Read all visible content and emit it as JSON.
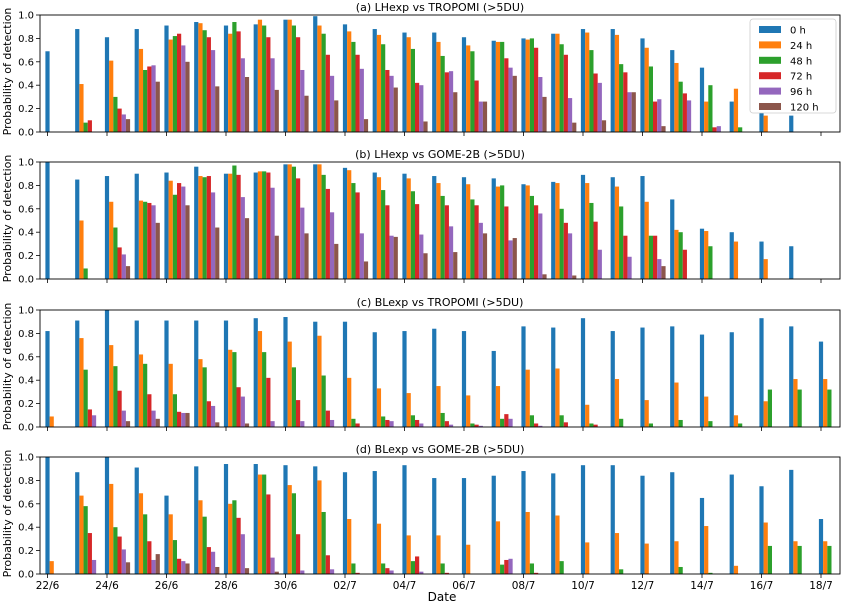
{
  "figure": {
    "xlabel": "Date",
    "ylabel": "Probability of detection",
    "x_tick_labels": [
      "22/6",
      "24/6",
      "26/6",
      "28/6",
      "30/6",
      "02/7",
      "04/7",
      "06/7",
      "08/7",
      "10/7",
      "12/7",
      "14/7",
      "16/7",
      "18/7"
    ],
    "y_tick_labels": [
      "0.0",
      "0.2",
      "0.4",
      "0.6",
      "0.8",
      "1.0"
    ],
    "legend": {
      "placement": "top-right of panel (a)",
      "entries": [
        "0 h",
        "24 h",
        "48 h",
        "72 h",
        "96 h",
        "120 h"
      ]
    },
    "colors": [
      "#1f77b4",
      "#ff7f0e",
      "#2ca02c",
      "#d62728",
      "#9467bd",
      "#8c564b"
    ]
  },
  "chart_data": [
    {
      "type": "bar",
      "title": "(a) LHexp vs TROPOMI (>5DU)",
      "ylabel": "Probability of detection",
      "ylim": [
        0,
        1
      ],
      "categories": [
        "22/6",
        "23/6",
        "24/6",
        "25/6",
        "26/6",
        "27/6",
        "28/6",
        "29/6",
        "30/6",
        "01/7",
        "02/7",
        "03/7",
        "04/7",
        "05/7",
        "06/7",
        "07/7",
        "08/7",
        "09/7",
        "10/7",
        "11/7",
        "12/7",
        "13/7",
        "14/7",
        "15/7",
        "16/7",
        "17/7",
        "18/7"
      ],
      "series": [
        {
          "name": "0 h",
          "values": [
            0.69,
            0.88,
            0.81,
            0.88,
            0.91,
            0.94,
            0.91,
            0.92,
            0.96,
            0.99,
            0.92,
            0.88,
            0.85,
            0.85,
            0.81,
            0.78,
            0.8,
            0.84,
            0.88,
            0.88,
            0.8,
            0.7,
            0.55,
            0.26,
            0.4,
            0.14,
            null
          ]
        },
        {
          "name": "24 h",
          "values": [
            null,
            0.41,
            0.61,
            0.71,
            0.79,
            0.93,
            0.84,
            0.96,
            0.96,
            0.91,
            0.86,
            0.83,
            0.81,
            0.77,
            0.74,
            0.77,
            0.79,
            0.84,
            0.85,
            0.83,
            0.72,
            0.59,
            0.26,
            0.37,
            0.14,
            null,
            null
          ]
        },
        {
          "name": "48 h",
          "values": [
            null,
            0.08,
            0.3,
            0.53,
            0.82,
            0.87,
            0.94,
            0.91,
            0.91,
            0.84,
            0.77,
            0.75,
            0.71,
            0.65,
            0.69,
            0.77,
            0.8,
            0.75,
            0.7,
            0.58,
            0.56,
            0.43,
            0.4,
            0.04,
            null,
            null,
            null
          ]
        },
        {
          "name": "72 h",
          "values": [
            null,
            0.1,
            0.2,
            0.56,
            0.84,
            0.81,
            0.86,
            0.81,
            0.81,
            0.66,
            0.66,
            0.53,
            0.42,
            0.51,
            0.44,
            0.63,
            0.72,
            0.66,
            0.5,
            0.51,
            0.26,
            0.33,
            0.04,
            null,
            null,
            null,
            null
          ]
        },
        {
          "name": "96 h",
          "values": [
            null,
            null,
            0.15,
            0.57,
            0.74,
            0.7,
            0.63,
            0.63,
            0.53,
            0.48,
            0.54,
            0.48,
            0.4,
            0.52,
            0.26,
            0.55,
            0.47,
            0.29,
            0.42,
            0.34,
            0.28,
            0.27,
            0.05,
            null,
            null,
            null,
            null
          ]
        },
        {
          "name": "120 h",
          "values": [
            null,
            null,
            0.11,
            0.43,
            0.6,
            0.39,
            0.47,
            0.36,
            0.31,
            0.27,
            0.11,
            0.38,
            0.09,
            0.34,
            0.26,
            0.48,
            0.3,
            0.08,
            0.1,
            0.34,
            0.05,
            null,
            null,
            null,
            null,
            null,
            null
          ]
        }
      ]
    },
    {
      "type": "bar",
      "title": "(b) LHexp vs GOME-2B (>5DU)",
      "ylabel": "Probability of detection",
      "ylim": [
        0,
        1
      ],
      "categories": [
        "22/6",
        "23/6",
        "24/6",
        "25/6",
        "26/6",
        "27/6",
        "28/6",
        "29/6",
        "30/6",
        "01/7",
        "02/7",
        "03/7",
        "04/7",
        "05/7",
        "06/7",
        "07/7",
        "08/7",
        "09/7",
        "10/7",
        "11/7",
        "12/7",
        "13/7",
        "14/7",
        "15/7",
        "16/7",
        "17/7",
        "18/7"
      ],
      "series": [
        {
          "name": "0 h",
          "values": [
            1.0,
            0.85,
            0.88,
            0.9,
            0.91,
            0.96,
            0.9,
            0.91,
            0.98,
            0.98,
            0.95,
            0.91,
            0.9,
            0.88,
            0.87,
            0.86,
            0.81,
            0.83,
            0.89,
            0.87,
            0.88,
            0.68,
            0.43,
            0.4,
            0.32,
            0.28,
            null
          ]
        },
        {
          "name": "24 h",
          "values": [
            null,
            0.5,
            0.66,
            0.67,
            0.84,
            0.88,
            0.9,
            0.92,
            0.98,
            0.98,
            0.93,
            0.87,
            0.86,
            0.82,
            0.81,
            0.79,
            0.8,
            0.82,
            0.82,
            0.79,
            0.66,
            0.42,
            0.41,
            0.32,
            0.17,
            null,
            null
          ]
        },
        {
          "name": "48 h",
          "values": [
            null,
            0.09,
            0.44,
            0.66,
            0.72,
            0.87,
            0.97,
            0.92,
            0.96,
            0.89,
            0.82,
            0.76,
            0.75,
            0.71,
            0.68,
            0.8,
            0.71,
            0.6,
            0.65,
            0.62,
            0.37,
            0.4,
            0.28,
            null,
            null,
            null,
            null
          ]
        },
        {
          "name": "72 h",
          "values": [
            null,
            null,
            0.27,
            0.65,
            0.82,
            0.88,
            0.89,
            0.91,
            0.86,
            0.77,
            0.74,
            0.63,
            0.64,
            0.63,
            0.63,
            0.62,
            0.63,
            0.48,
            0.49,
            0.37,
            0.37,
            0.25,
            null,
            null,
            null,
            null,
            null
          ]
        },
        {
          "name": "96 h",
          "values": [
            null,
            null,
            0.21,
            0.63,
            0.79,
            0.74,
            0.7,
            0.78,
            0.61,
            0.57,
            0.39,
            0.37,
            0.38,
            0.45,
            0.48,
            0.33,
            0.56,
            0.39,
            0.25,
            0.19,
            0.17,
            null,
            null,
            null,
            null,
            null,
            null
          ]
        },
        {
          "name": "120 h",
          "values": [
            null,
            null,
            0.11,
            0.48,
            0.63,
            0.44,
            0.52,
            0.37,
            0.39,
            0.3,
            0.15,
            0.36,
            0.22,
            0.23,
            0.39,
            0.35,
            0.04,
            0.03,
            null,
            null,
            0.11,
            null,
            null,
            null,
            null,
            null,
            null
          ]
        }
      ]
    },
    {
      "type": "bar",
      "title": "(c) BLexp vs TROPOMI (>5DU)",
      "ylabel": "Probability of detection",
      "ylim": [
        0,
        1
      ],
      "categories": [
        "22/6",
        "23/6",
        "24/6",
        "25/6",
        "26/6",
        "27/6",
        "28/6",
        "29/6",
        "30/6",
        "01/7",
        "02/7",
        "03/7",
        "04/7",
        "05/7",
        "06/7",
        "07/7",
        "08/7",
        "09/7",
        "10/7",
        "11/7",
        "12/7",
        "13/7",
        "14/7",
        "15/7",
        "16/7",
        "17/7",
        "18/7"
      ],
      "series": [
        {
          "name": "0 h",
          "values": [
            0.82,
            0.91,
            1.0,
            0.91,
            0.91,
            0.91,
            0.91,
            0.93,
            0.94,
            0.9,
            0.9,
            0.81,
            0.82,
            0.84,
            0.82,
            0.65,
            0.86,
            0.85,
            0.93,
            0.82,
            0.85,
            0.86,
            0.79,
            0.81,
            0.93,
            0.86,
            0.73
          ]
        },
        {
          "name": "24 h",
          "values": [
            0.09,
            0.76,
            0.7,
            0.62,
            0.54,
            0.58,
            0.66,
            0.82,
            0.73,
            0.78,
            0.42,
            0.33,
            0.29,
            0.35,
            0.27,
            0.35,
            0.49,
            0.5,
            0.19,
            0.41,
            0.23,
            0.38,
            0.26,
            0.1,
            0.22,
            0.41,
            0.41
          ]
        },
        {
          "name": "48 h",
          "values": [
            null,
            0.49,
            0.52,
            0.54,
            0.28,
            0.51,
            0.64,
            0.64,
            0.51,
            0.44,
            0.07,
            0.09,
            0.1,
            0.12,
            0.03,
            0.07,
            0.1,
            0.1,
            0.03,
            0.07,
            0.03,
            0.06,
            0.05,
            0.03,
            0.32,
            0.32,
            0.32
          ]
        },
        {
          "name": "72 h",
          "values": [
            null,
            0.15,
            0.31,
            0.28,
            0.13,
            0.22,
            0.34,
            0.42,
            0.23,
            0.14,
            0.03,
            0.06,
            0.06,
            0.05,
            0.02,
            0.11,
            0.03,
            0.04,
            0.02,
            null,
            null,
            null,
            null,
            null,
            null,
            null,
            null
          ]
        },
        {
          "name": "96 h",
          "values": [
            null,
            0.1,
            0.14,
            0.14,
            0.12,
            0.18,
            0.26,
            0.05,
            0.05,
            0.06,
            null,
            0.05,
            0.03,
            0.02,
            0.01,
            0.07,
            0.01,
            null,
            null,
            null,
            null,
            null,
            null,
            null,
            null,
            null,
            null
          ]
        },
        {
          "name": "120 h",
          "values": [
            null,
            null,
            0.05,
            0.07,
            0.12,
            0.04,
            0.03,
            null,
            null,
            null,
            null,
            null,
            null,
            null,
            null,
            null,
            null,
            null,
            null,
            null,
            null,
            null,
            null,
            null,
            null,
            null,
            null
          ]
        }
      ]
    },
    {
      "type": "bar",
      "title": "(d) BLexp vs GOME-2B (>5DU)",
      "ylabel": "Probability of detection",
      "ylim": [
        0,
        1
      ],
      "categories": [
        "22/6",
        "23/6",
        "24/6",
        "25/6",
        "26/6",
        "27/6",
        "28/6",
        "29/6",
        "30/6",
        "01/7",
        "02/7",
        "03/7",
        "04/7",
        "05/7",
        "06/7",
        "07/7",
        "08/7",
        "09/7",
        "10/7",
        "11/7",
        "12/7",
        "13/7",
        "14/7",
        "15/7",
        "16/7",
        "17/7",
        "18/7"
      ],
      "series": [
        {
          "name": "0 h",
          "values": [
            1.0,
            0.87,
            1.0,
            0.91,
            0.67,
            0.92,
            0.94,
            0.94,
            0.93,
            0.92,
            0.87,
            0.88,
            0.93,
            0.82,
            0.82,
            0.84,
            0.88,
            0.86,
            0.93,
            0.93,
            0.84,
            0.87,
            0.65,
            0.85,
            0.75,
            0.89,
            0.47
          ]
        },
        {
          "name": "24 h",
          "values": [
            0.11,
            0.67,
            0.77,
            0.69,
            0.51,
            0.63,
            0.6,
            0.85,
            0.76,
            0.8,
            0.47,
            0.43,
            0.33,
            0.33,
            0.25,
            0.45,
            0.53,
            0.5,
            0.27,
            0.35,
            0.26,
            0.28,
            0.41,
            0.07,
            0.44,
            0.28,
            0.28
          ]
        },
        {
          "name": "48 h",
          "values": [
            null,
            0.58,
            0.4,
            0.51,
            0.29,
            0.49,
            0.63,
            0.85,
            0.69,
            0.53,
            0.09,
            0.09,
            0.11,
            0.09,
            null,
            0.08,
            0.09,
            0.11,
            null,
            0.04,
            null,
            0.06,
            0.01,
            null,
            0.24,
            0.24,
            0.24
          ]
        },
        {
          "name": "72 h",
          "values": [
            null,
            0.35,
            0.32,
            0.28,
            0.13,
            0.23,
            0.48,
            0.68,
            0.34,
            0.16,
            0.01,
            0.05,
            0.15,
            0.01,
            null,
            0.12,
            0.01,
            null,
            null,
            null,
            null,
            null,
            null,
            null,
            null,
            null,
            null
          ]
        },
        {
          "name": "96 h",
          "values": [
            null,
            0.12,
            0.21,
            0.12,
            0.11,
            0.19,
            0.34,
            0.14,
            0.03,
            0.04,
            null,
            0.03,
            0.02,
            null,
            null,
            0.13,
            null,
            null,
            null,
            null,
            null,
            null,
            null,
            null,
            null,
            null,
            null
          ]
        },
        {
          "name": "120 h",
          "values": [
            null,
            null,
            0.1,
            0.17,
            0.09,
            0.06,
            0.05,
            0.02,
            null,
            null,
            null,
            null,
            null,
            null,
            null,
            null,
            null,
            null,
            null,
            null,
            null,
            null,
            null,
            null,
            null,
            null,
            null
          ]
        }
      ]
    }
  ]
}
